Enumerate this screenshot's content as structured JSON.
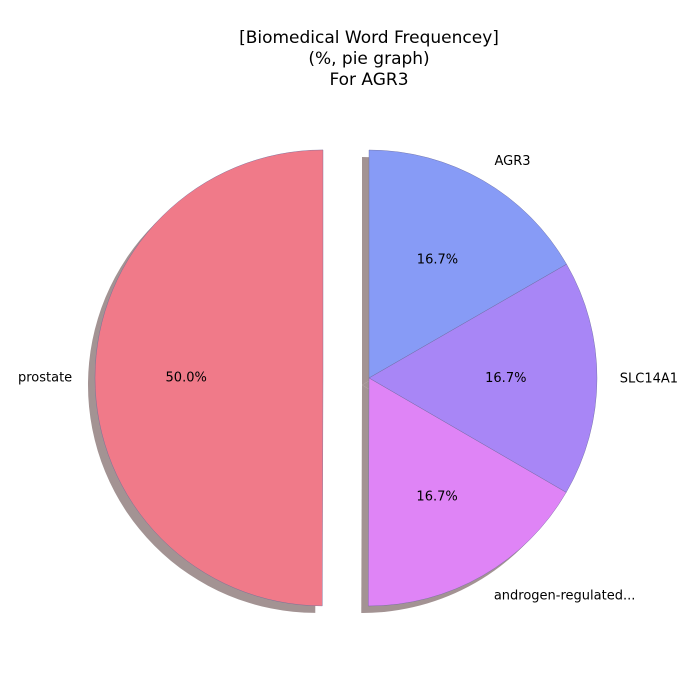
{
  "chart_data": {
    "type": "pie",
    "title_lines": [
      "[Biomedical Word Frequencey]",
      "(%, pie graph)",
      "For AGR3"
    ],
    "slices": [
      {
        "label": "AGR3",
        "value": 16.7,
        "pct_label": "16.7%",
        "color": "#879bf6",
        "exploded": false
      },
      {
        "label": "SLC14A1",
        "value": 16.7,
        "pct_label": "16.7%",
        "color": "#a886f6",
        "exploded": false
      },
      {
        "label": "androgen-regulated...",
        "value": 16.7,
        "pct_label": "16.7%",
        "color": "#df84f6",
        "exploded": false
      },
      {
        "label": "prostate",
        "value": 50.0,
        "pct_label": "50.0%",
        "color": "#f07a89",
        "exploded": true
      }
    ],
    "start_angle_deg": 90,
    "direction": "clockwise",
    "shadow": true,
    "shadow_color": "#a39393"
  }
}
